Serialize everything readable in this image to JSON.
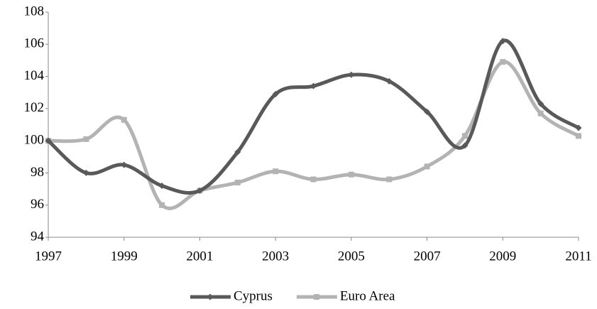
{
  "chart_data": {
    "type": "line",
    "x": [
      1997,
      1998,
      1999,
      2000,
      2001,
      2002,
      2003,
      2004,
      2005,
      2006,
      2007,
      2008,
      2009,
      2010,
      2011
    ],
    "series": [
      {
        "name": "Cyprus",
        "color": "#595959",
        "marker": "diamond",
        "values": [
          100,
          98.0,
          98.5,
          97.2,
          96.9,
          99.3,
          102.9,
          103.4,
          104.1,
          103.7,
          101.8,
          99.7,
          106.2,
          102.3,
          100.8
        ]
      },
      {
        "name": "Euro Area",
        "color": "#b3b3b3",
        "marker": "square",
        "values": [
          100,
          100.1,
          101.3,
          96.0,
          96.9,
          97.4,
          98.1,
          97.6,
          97.9,
          97.6,
          98.4,
          100.3,
          104.9,
          101.7,
          100.3
        ]
      }
    ],
    "xlim": [
      1997,
      2011
    ],
    "xticks": [
      1997,
      1999,
      2001,
      2003,
      2005,
      2007,
      2009,
      2011
    ],
    "ylim": [
      94,
      108
    ],
    "yticks": [
      94,
      96,
      98,
      100,
      102,
      104,
      106,
      108
    ],
    "smooth": true,
    "grid": false,
    "legend": "bottom"
  }
}
